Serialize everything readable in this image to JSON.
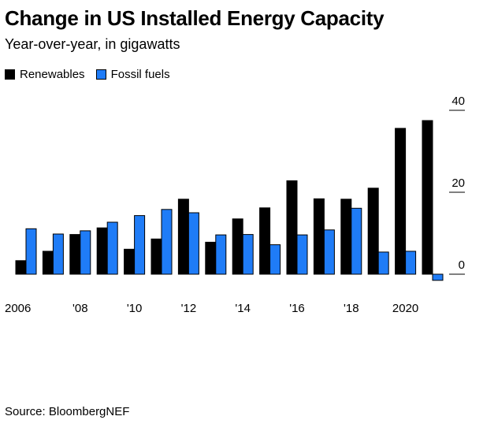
{
  "header": {
    "title": "Change in US Installed Energy Capacity",
    "subtitle": "Year-over-year, in gigawatts"
  },
  "legend": {
    "items": [
      {
        "label": "Renewables",
        "color": "#000000"
      },
      {
        "label": "Fossil fuels",
        "color": "#1f7cf7"
      }
    ]
  },
  "footer": {
    "source": "Source: BloombergNEF"
  },
  "chart_data": {
    "type": "bar",
    "title": "Change in US Installed Energy Capacity",
    "subtitle": "Year-over-year, in gigawatts",
    "categories": [
      2006,
      2007,
      2008,
      2009,
      2010,
      2011,
      2012,
      2013,
      2014,
      2015,
      2016,
      2017,
      2018,
      2019,
      2020,
      2021
    ],
    "x_tick_labels": [
      {
        "year": 2006,
        "label": "2006"
      },
      {
        "year": 2008,
        "label": "'08"
      },
      {
        "year": 2010,
        "label": "'10"
      },
      {
        "year": 2012,
        "label": "'12"
      },
      {
        "year": 2014,
        "label": "'14"
      },
      {
        "year": 2016,
        "label": "'16"
      },
      {
        "year": 2018,
        "label": "'18"
      },
      {
        "year": 2020,
        "label": "2020"
      }
    ],
    "series": [
      {
        "name": "Renewables",
        "color": "#000000",
        "values": [
          3.3,
          5.6,
          9.7,
          11.3,
          6.1,
          8.6,
          18.3,
          7.8,
          13.5,
          16.2,
          22.8,
          18.4,
          18.3,
          21.0,
          35.6,
          37.5
        ]
      },
      {
        "name": "Fossil fuels",
        "color": "#1f7cf7",
        "values": [
          11.1,
          9.8,
          10.6,
          12.7,
          14.3,
          15.8,
          15.0,
          9.6,
          9.7,
          7.2,
          9.6,
          10.8,
          16.1,
          5.4,
          5.6,
          -1.5
        ]
      }
    ],
    "y_ticks": [
      0,
      20,
      40
    ],
    "ylim": [
      -2,
      43
    ],
    "grid": false,
    "legend_position": "top-left"
  }
}
